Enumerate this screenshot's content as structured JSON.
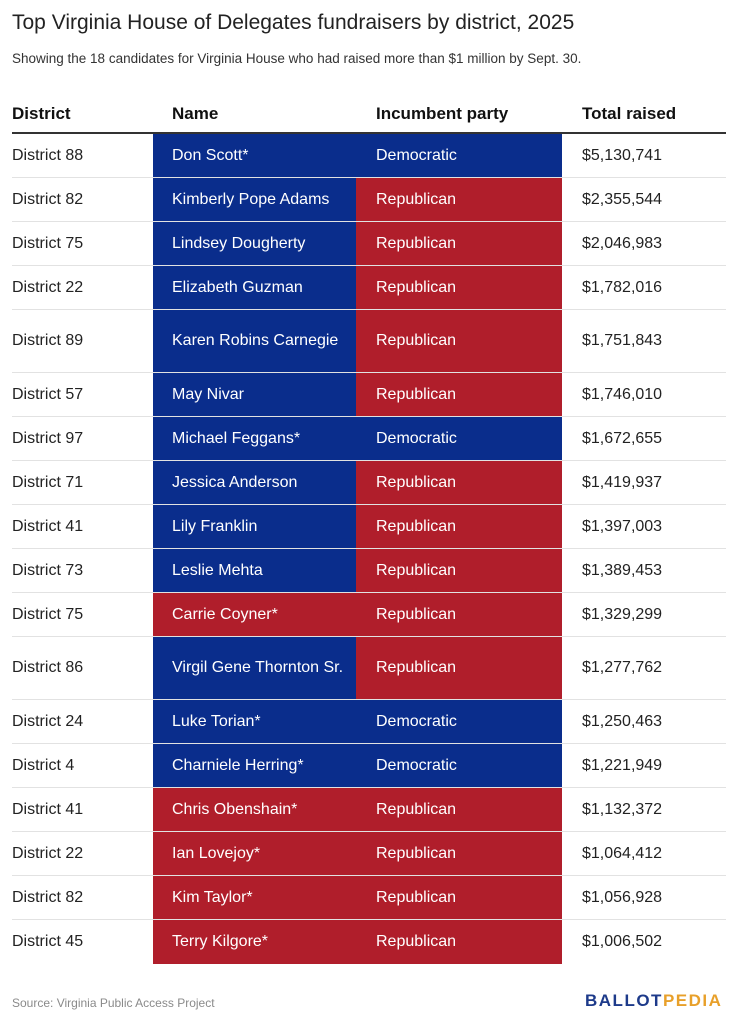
{
  "title": "Top Virginia House of Delegates fundraisers by district, 2025",
  "subtitle": "Showing the 18 candidates for Virginia House who had raised more than $1 million by Sept. 30.",
  "colors": {
    "democratic": "#0a2d8c",
    "republican": "#b01e2b"
  },
  "chart_data": {
    "type": "table",
    "columns": [
      "District",
      "Name",
      "Incumbent party",
      "Total raised"
    ],
    "rows": [
      {
        "district": "District 88",
        "name": "Don Scott*",
        "name_party": "dem",
        "party": "Democratic",
        "party_color": "dem",
        "total": "$5,130,741",
        "value": 5130741
      },
      {
        "district": "District 82",
        "name": "Kimberly Pope Adams",
        "name_party": "dem",
        "party": "Republican",
        "party_color": "rep",
        "total": "$2,355,544",
        "value": 2355544
      },
      {
        "district": "District 75",
        "name": "Lindsey Dougherty",
        "name_party": "dem",
        "party": "Republican",
        "party_color": "rep",
        "total": "$2,046,983",
        "value": 2046983
      },
      {
        "district": "District 22",
        "name": "Elizabeth Guzman",
        "name_party": "dem",
        "party": "Republican",
        "party_color": "rep",
        "total": "$1,782,016",
        "value": 1782016
      },
      {
        "district": "District 89",
        "name": "Karen Robins Carnegie",
        "name_party": "dem",
        "party": "Republican",
        "party_color": "rep",
        "total": "$1,751,843",
        "value": 1751843
      },
      {
        "district": "District 57",
        "name": "May Nivar",
        "name_party": "dem",
        "party": "Republican",
        "party_color": "rep",
        "total": "$1,746,010",
        "value": 1746010
      },
      {
        "district": "District 97",
        "name": "Michael Feggans*",
        "name_party": "dem",
        "party": "Democratic",
        "party_color": "dem",
        "total": "$1,672,655",
        "value": 1672655
      },
      {
        "district": "District 71",
        "name": "Jessica Anderson",
        "name_party": "dem",
        "party": "Republican",
        "party_color": "rep",
        "total": "$1,419,937",
        "value": 1419937
      },
      {
        "district": "District 41",
        "name": "Lily Franklin",
        "name_party": "dem",
        "party": "Republican",
        "party_color": "rep",
        "total": "$1,397,003",
        "value": 1397003
      },
      {
        "district": "District 73",
        "name": "Leslie Mehta",
        "name_party": "dem",
        "party": "Republican",
        "party_color": "rep",
        "total": "$1,389,453",
        "value": 1389453
      },
      {
        "district": "District 75",
        "name": "Carrie Coyner*",
        "name_party": "rep",
        "party": "Republican",
        "party_color": "rep",
        "total": "$1,329,299",
        "value": 1329299
      },
      {
        "district": "District 86",
        "name": "Virgil Gene Thornton Sr.",
        "name_party": "dem",
        "party": "Republican",
        "party_color": "rep",
        "total": "$1,277,762",
        "value": 1277762
      },
      {
        "district": "District 24",
        "name": "Luke Torian*",
        "name_party": "dem",
        "party": "Democratic",
        "party_color": "dem",
        "total": "$1,250,463",
        "value": 1250463
      },
      {
        "district": "District 4",
        "name": "Charniele Herring*",
        "name_party": "dem",
        "party": "Democratic",
        "party_color": "dem",
        "total": "$1,221,949",
        "value": 1221949
      },
      {
        "district": "District 41",
        "name": "Chris Obenshain*",
        "name_party": "rep",
        "party": "Republican",
        "party_color": "rep",
        "total": "$1,132,372",
        "value": 1132372
      },
      {
        "district": "District 22",
        "name": "Ian Lovejoy*",
        "name_party": "rep",
        "party": "Republican",
        "party_color": "rep",
        "total": "$1,064,412",
        "value": 1064412
      },
      {
        "district": "District 82",
        "name": "Kim Taylor*",
        "name_party": "rep",
        "party": "Republican",
        "party_color": "rep",
        "total": "$1,056,928",
        "value": 1056928
      },
      {
        "district": "District 45",
        "name": "Terry Kilgore*",
        "name_party": "rep",
        "party": "Republican",
        "party_color": "rep",
        "total": "$1,006,502",
        "value": 1006502
      }
    ]
  },
  "footer": {
    "source": "Source: Virginia Public Access Project",
    "logo_part1": "BALLOT",
    "logo_part2": "PEDIA"
  }
}
